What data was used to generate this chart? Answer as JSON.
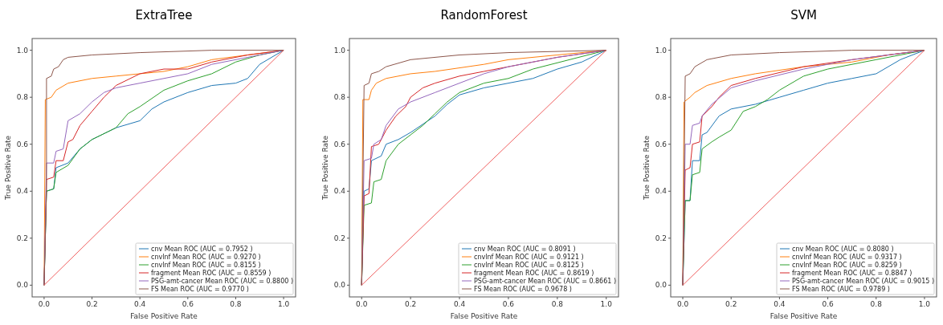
{
  "chart_data": [
    {
      "type": "line",
      "title": "ExtraTree",
      "xlabel": "False Positive Rate",
      "ylabel": "True Positive Rate",
      "xlim": [
        -0.05,
        1.05
      ],
      "ylim": [
        -0.05,
        1.05
      ],
      "xticks": [
        {
          "value": 0,
          "label": "0.0"
        },
        {
          "value": 0.2,
          "label": "0.2"
        },
        {
          "value": 0.4,
          "label": "0.4"
        },
        {
          "value": 0.6,
          "label": "0.6"
        },
        {
          "value": 0.8,
          "label": "0.8"
        },
        {
          "value": 1,
          "label": "1.0"
        }
      ],
      "yticks": [
        {
          "value": 0,
          "label": "0.0"
        },
        {
          "value": 0.2,
          "label": "0.2"
        },
        {
          "value": 0.4,
          "label": "0.4"
        },
        {
          "value": 0.6,
          "label": "0.6"
        },
        {
          "value": 0.8,
          "label": "0.8"
        },
        {
          "value": 1,
          "label": "1.0"
        }
      ],
      "legend": "bottom right",
      "series": [
        {
          "name": "cnv Mean ROC (AUC = 0.7952 )",
          "color": "#1f77b4",
          "x": [
            0,
            0.01,
            0.04,
            0.05,
            0.1,
            0.15,
            0.2,
            0.3,
            0.4,
            0.45,
            0.5,
            0.6,
            0.7,
            0.8,
            0.85,
            0.9,
            1
          ],
          "values": [
            0,
            0.4,
            0.41,
            0.5,
            0.52,
            0.58,
            0.62,
            0.67,
            0.7,
            0.75,
            0.78,
            0.82,
            0.85,
            0.86,
            0.88,
            0.94,
            1
          ]
        },
        {
          "name": "cnvlnf Mean ROC (AUC = 0.9270 )",
          "color": "#ff7f0e",
          "x": [
            0,
            0.005,
            0.03,
            0.05,
            0.1,
            0.2,
            0.3,
            0.5,
            0.6,
            0.7,
            0.85,
            1
          ],
          "values": [
            0,
            0.79,
            0.8,
            0.83,
            0.86,
            0.88,
            0.89,
            0.91,
            0.93,
            0.96,
            0.98,
            1
          ]
        },
        {
          "name": "cnvlnf Mean ROC (AUC = 0.8155 )",
          "color": "#2ca02c",
          "x": [
            0,
            0.01,
            0.04,
            0.05,
            0.1,
            0.15,
            0.2,
            0.3,
            0.35,
            0.4,
            0.5,
            0.6,
            0.7,
            0.8,
            0.9,
            1
          ],
          "values": [
            0,
            0.4,
            0.41,
            0.48,
            0.51,
            0.58,
            0.62,
            0.67,
            0.73,
            0.76,
            0.83,
            0.87,
            0.9,
            0.95,
            0.98,
            1
          ]
        },
        {
          "name": "fragment Mean ROC (AUC = 0.8559 )",
          "color": "#d62728",
          "x": [
            0,
            0.01,
            0.04,
            0.05,
            0.08,
            0.1,
            0.12,
            0.15,
            0.2,
            0.25,
            0.3,
            0.4,
            0.5,
            0.6,
            0.7,
            0.85,
            1
          ],
          "values": [
            0,
            0.45,
            0.46,
            0.53,
            0.53,
            0.61,
            0.62,
            0.68,
            0.74,
            0.8,
            0.85,
            0.9,
            0.92,
            0.92,
            0.95,
            0.98,
            1
          ]
        },
        {
          "name": "PSG-amt-cancer Mean ROC (AUC = 0.8800 )",
          "color": "#9467bd",
          "x": [
            0,
            0.01,
            0.04,
            0.05,
            0.08,
            0.1,
            0.15,
            0.2,
            0.25,
            0.3,
            0.4,
            0.5,
            0.6,
            0.7,
            0.85,
            1
          ],
          "values": [
            0,
            0.52,
            0.52,
            0.57,
            0.58,
            0.7,
            0.73,
            0.78,
            0.82,
            0.84,
            0.86,
            0.88,
            0.9,
            0.94,
            0.97,
            1
          ]
        },
        {
          "name": "FS Mean ROC (AUC = 0.9770 )",
          "color": "#8c564b",
          "x": [
            0,
            0.01,
            0.01,
            0.03,
            0.04,
            0.06,
            0.08,
            0.1,
            0.2,
            0.4,
            0.7,
            1
          ],
          "values": [
            0,
            0.4,
            0.88,
            0.89,
            0.92,
            0.93,
            0.96,
            0.97,
            0.98,
            0.99,
            1,
            1
          ]
        },
        {
          "color": "#f06060",
          "x": [
            0,
            1
          ],
          "values": [
            0,
            1
          ]
        }
      ]
    },
    {
      "type": "line",
      "title": "RandomForest",
      "xlabel": "False Positive Rate",
      "ylabel": "True Positive Rate",
      "xlim": [
        -0.05,
        1.05
      ],
      "ylim": [
        -0.05,
        1.05
      ],
      "xticks": [
        {
          "value": 0,
          "label": "0.0"
        },
        {
          "value": 0.2,
          "label": "0.2"
        },
        {
          "value": 0.4,
          "label": "0.4"
        },
        {
          "value": 0.6,
          "label": "0.6"
        },
        {
          "value": 0.8,
          "label": "0.8"
        },
        {
          "value": 1,
          "label": "1.0"
        }
      ],
      "yticks": [
        {
          "value": 0,
          "label": "0.0"
        },
        {
          "value": 0.2,
          "label": "0.2"
        },
        {
          "value": 0.4,
          "label": "0.4"
        },
        {
          "value": 0.6,
          "label": "0.6"
        },
        {
          "value": 0.8,
          "label": "0.8"
        },
        {
          "value": 1,
          "label": "1.0"
        }
      ],
      "legend": "bottom right",
      "series": [
        {
          "name": "cnv Mean ROC (AUC = 0.8091 )",
          "color": "#1f77b4",
          "x": [
            0,
            0.01,
            0.03,
            0.04,
            0.08,
            0.1,
            0.15,
            0.2,
            0.3,
            0.35,
            0.4,
            0.5,
            0.6,
            0.7,
            0.8,
            0.9,
            1
          ],
          "values": [
            0,
            0.4,
            0.41,
            0.53,
            0.55,
            0.6,
            0.62,
            0.65,
            0.72,
            0.77,
            0.81,
            0.84,
            0.86,
            0.88,
            0.92,
            0.95,
            1
          ]
        },
        {
          "name": "cnvlnf Mean ROC (AUC = 0.9121 )",
          "color": "#ff7f0e",
          "x": [
            0,
            0.005,
            0.03,
            0.04,
            0.06,
            0.1,
            0.2,
            0.3,
            0.5,
            0.6,
            0.8,
            1
          ],
          "values": [
            0,
            0.79,
            0.79,
            0.83,
            0.86,
            0.88,
            0.9,
            0.91,
            0.94,
            0.96,
            0.98,
            1
          ]
        },
        {
          "name": "cnvlnf Mean ROC (AUC = 0.8125 )",
          "color": "#2ca02c",
          "x": [
            0,
            0.01,
            0.04,
            0.05,
            0.08,
            0.1,
            0.15,
            0.2,
            0.25,
            0.3,
            0.35,
            0.4,
            0.5,
            0.6,
            0.7,
            0.85,
            1
          ],
          "values": [
            0,
            0.34,
            0.35,
            0.44,
            0.45,
            0.53,
            0.6,
            0.64,
            0.68,
            0.73,
            0.78,
            0.82,
            0.86,
            0.88,
            0.92,
            0.96,
            1
          ]
        },
        {
          "name": "fragment Mean ROC (AUC = 0.8619 )",
          "color": "#d62728",
          "x": [
            0,
            0.01,
            0.03,
            0.04,
            0.07,
            0.1,
            0.14,
            0.18,
            0.2,
            0.25,
            0.3,
            0.4,
            0.5,
            0.6,
            0.8,
            1
          ],
          "values": [
            0,
            0.38,
            0.39,
            0.59,
            0.6,
            0.66,
            0.72,
            0.76,
            0.8,
            0.84,
            0.86,
            0.89,
            0.91,
            0.93,
            0.97,
            1
          ]
        },
        {
          "name": "PSG-amt-cancer Mean ROC (AUC = 0.8661 )",
          "color": "#9467bd",
          "x": [
            0,
            0.01,
            0.04,
            0.05,
            0.08,
            0.1,
            0.15,
            0.2,
            0.3,
            0.4,
            0.5,
            0.6,
            0.8,
            1
          ],
          "values": [
            0,
            0.53,
            0.54,
            0.6,
            0.62,
            0.68,
            0.75,
            0.78,
            0.82,
            0.86,
            0.9,
            0.93,
            0.97,
            1
          ]
        },
        {
          "name": "FS Mean ROC (AUC = 0.9678 )",
          "color": "#8c564b",
          "x": [
            0,
            0.01,
            0.03,
            0.04,
            0.07,
            0.1,
            0.2,
            0.4,
            0.6,
            1
          ],
          "values": [
            0,
            0.85,
            0.86,
            0.9,
            0.91,
            0.93,
            0.96,
            0.98,
            0.99,
            1
          ]
        },
        {
          "color": "#f06060",
          "x": [
            0,
            1
          ],
          "values": [
            0,
            1
          ]
        }
      ]
    },
    {
      "type": "line",
      "title": "SVM",
      "xlabel": "False Positive Rate",
      "ylabel": "True Positive Rate",
      "xlim": [
        -0.05,
        1.05
      ],
      "ylim": [
        -0.05,
        1.05
      ],
      "xticks": [
        {
          "value": 0,
          "label": "0.0"
        },
        {
          "value": 0.2,
          "label": "0.2"
        },
        {
          "value": 0.4,
          "label": "0.4"
        },
        {
          "value": 0.6,
          "label": "0.6"
        },
        {
          "value": 0.8,
          "label": "0.8"
        },
        {
          "value": 1,
          "label": "1.0"
        }
      ],
      "yticks": [
        {
          "value": 0,
          "label": "0.0"
        },
        {
          "value": 0.2,
          "label": "0.2"
        },
        {
          "value": 0.4,
          "label": "0.4"
        },
        {
          "value": 0.6,
          "label": "0.6"
        },
        {
          "value": 0.8,
          "label": "0.8"
        },
        {
          "value": 1,
          "label": "1.0"
        }
      ],
      "legend": "bottom right",
      "series": [
        {
          "name": "cnv Mean ROC (AUC = 0.8080 )",
          "color": "#1f77b4",
          "x": [
            0,
            0.01,
            0.03,
            0.04,
            0.07,
            0.08,
            0.1,
            0.15,
            0.2,
            0.3,
            0.4,
            0.5,
            0.6,
            0.7,
            0.8,
            0.9,
            1
          ],
          "values": [
            0,
            0.36,
            0.36,
            0.53,
            0.53,
            0.64,
            0.65,
            0.72,
            0.75,
            0.77,
            0.8,
            0.83,
            0.86,
            0.88,
            0.9,
            0.96,
            1
          ]
        },
        {
          "name": "cnvlnf Mean ROC (AUC = 0.9317 )",
          "color": "#ff7f0e",
          "x": [
            0,
            0.005,
            0.03,
            0.05,
            0.1,
            0.2,
            0.3,
            0.5,
            0.7,
            0.85,
            1
          ],
          "values": [
            0,
            0.78,
            0.8,
            0.82,
            0.85,
            0.88,
            0.9,
            0.93,
            0.95,
            0.98,
            1
          ]
        },
        {
          "name": "cnvlnf Mean ROC (AUC = 0.8259 )",
          "color": "#2ca02c",
          "x": [
            0,
            0.01,
            0.03,
            0.04,
            0.07,
            0.08,
            0.12,
            0.15,
            0.2,
            0.25,
            0.3,
            0.35,
            0.4,
            0.5,
            0.6,
            0.8,
            1
          ],
          "values": [
            0,
            0.36,
            0.36,
            0.47,
            0.48,
            0.58,
            0.61,
            0.63,
            0.66,
            0.74,
            0.76,
            0.79,
            0.83,
            0.89,
            0.92,
            0.96,
            1
          ]
        },
        {
          "name": "fragment Mean ROC (AUC = 0.8847 )",
          "color": "#d62728",
          "x": [
            0,
            0.01,
            0.03,
            0.04,
            0.07,
            0.08,
            0.12,
            0.15,
            0.2,
            0.3,
            0.5,
            0.7,
            0.85,
            1
          ],
          "values": [
            0,
            0.49,
            0.5,
            0.6,
            0.61,
            0.72,
            0.76,
            0.8,
            0.85,
            0.88,
            0.93,
            0.96,
            0.98,
            1
          ]
        },
        {
          "name": "PSG-amt-cancer Mean ROC (AUC = 0.9015 )",
          "color": "#9467bd",
          "x": [
            0,
            0.01,
            0.03,
            0.04,
            0.07,
            0.08,
            0.12,
            0.2,
            0.3,
            0.5,
            0.7,
            1
          ],
          "values": [
            0,
            0.6,
            0.6,
            0.68,
            0.69,
            0.72,
            0.77,
            0.84,
            0.87,
            0.92,
            0.96,
            1
          ]
        },
        {
          "name": "FS Mean ROC (AUC = 0.9789 )",
          "color": "#8c564b",
          "x": [
            0,
            0.01,
            0.03,
            0.05,
            0.1,
            0.2,
            0.4,
            0.7,
            1
          ],
          "values": [
            0,
            0.89,
            0.9,
            0.93,
            0.96,
            0.98,
            0.99,
            1,
            1
          ]
        },
        {
          "color": "#f06060",
          "x": [
            0,
            1
          ],
          "values": [
            0,
            1
          ]
        }
      ]
    }
  ]
}
